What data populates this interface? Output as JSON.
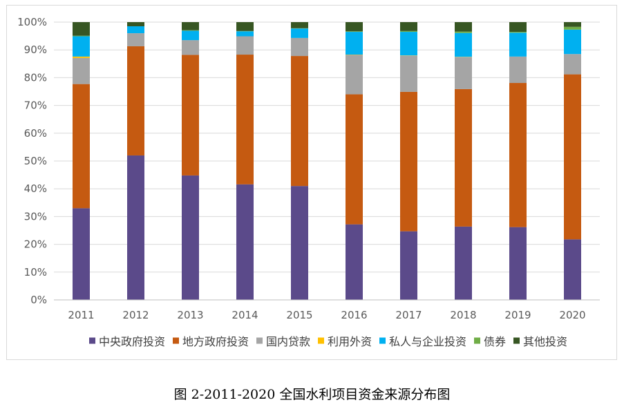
{
  "caption": "图 2-2011-2020 全国水利项目资金来源分布图",
  "chart_data": {
    "type": "bar",
    "stacked": true,
    "categories": [
      "2011",
      "2012",
      "2013",
      "2014",
      "2015",
      "2016",
      "2017",
      "2018",
      "2019",
      "2020"
    ],
    "ylim": [
      0,
      100
    ],
    "ytick_labels": [
      "0%",
      "10%",
      "20%",
      "30%",
      "40%",
      "50%",
      "60%",
      "70%",
      "80%",
      "90%",
      "100%"
    ],
    "grid": true,
    "legend_position": "bottom",
    "series": [
      {
        "name": "中央政府投资",
        "color": "#5b4a8a",
        "values": [
          33.0,
          52.0,
          44.8,
          41.6,
          41.0,
          27.2,
          24.7,
          26.4,
          26.2,
          21.8
        ]
      },
      {
        "name": "地方政府投资",
        "color": "#c55a11",
        "values": [
          44.7,
          39.3,
          43.4,
          46.7,
          46.8,
          46.8,
          50.2,
          49.5,
          51.9,
          59.4
        ]
      },
      {
        "name": "国内贷款",
        "color": "#a5a5a5",
        "values": [
          9.4,
          4.7,
          5.3,
          6.6,
          6.5,
          14.2,
          13.0,
          11.5,
          9.5,
          7.3
        ]
      },
      {
        "name": "利用外资",
        "color": "#ffc000",
        "values": [
          0.5,
          0.0,
          0.0,
          0.0,
          0.0,
          0.1,
          0.1,
          0.1,
          0.0,
          0.0
        ]
      },
      {
        "name": "私人与企业投资",
        "color": "#00b0f0",
        "values": [
          7.3,
          2.5,
          3.4,
          1.8,
          3.4,
          8.2,
          8.5,
          8.6,
          8.6,
          8.8
        ]
      },
      {
        "name": "债券",
        "color": "#70ad47",
        "values": [
          0.2,
          0.0,
          0.2,
          0.1,
          0.1,
          0.2,
          0.3,
          0.5,
          0.3,
          1.0
        ]
      },
      {
        "name": "其他投资",
        "color": "#375623",
        "values": [
          4.9,
          1.5,
          2.9,
          3.2,
          2.2,
          3.3,
          3.2,
          3.4,
          3.5,
          1.7
        ]
      }
    ]
  }
}
